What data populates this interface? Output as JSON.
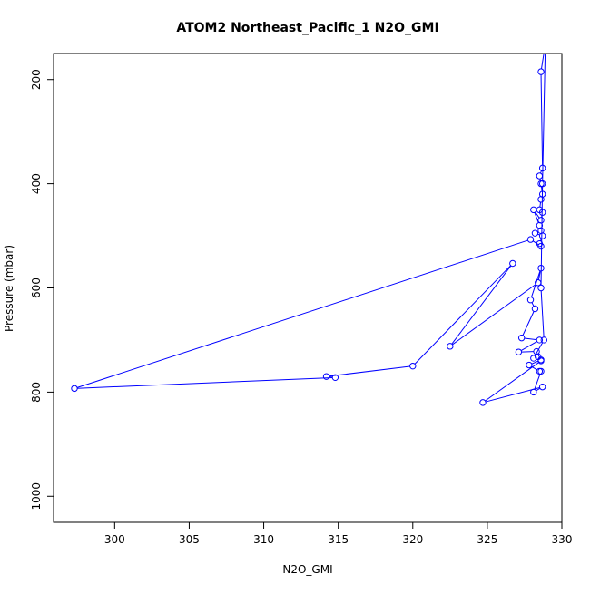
{
  "chart_data": {
    "type": "line",
    "title": "ATOM2 Northeast_Pacific_1 N2O_GMI",
    "xlabel": "N2O_GMI",
    "ylabel": "Pressure (mbar)",
    "xlim": [
      295.9,
      330
    ],
    "ylim": [
      1050,
      150
    ],
    "y_reversed": true,
    "x_ticks": [
      300,
      305,
      310,
      315,
      320,
      325,
      330
    ],
    "y_ticks": [
      200,
      400,
      600,
      800,
      1000
    ],
    "grid": false,
    "legend": "none",
    "markers": "open circles",
    "color": "#0000ff",
    "series": [
      {
        "x": [
          328.9,
          328.6,
          328.7,
          328.5,
          328.6,
          328.7,
          328.6,
          328.5,
          328.7,
          328.6,
          328.1,
          328.5,
          328.6,
          328.2,
          328.7,
          328.5,
          328.6,
          327.9,
          297.3,
          314.8,
          314.2,
          320.0,
          326.7,
          322.5,
          328.4,
          328.6,
          327.9,
          328.2,
          327.3,
          328.5,
          327.1,
          328.3,
          328.6,
          327.8,
          328.5,
          328.6,
          328.1,
          328.7,
          324.7,
          328.6,
          328.4,
          328.1,
          328.8,
          328.6,
          328.7,
          328.9
        ],
        "y": [
          130,
          185,
          370,
          385,
          400,
          420,
          430,
          450,
          455,
          470,
          450,
          480,
          490,
          495,
          500,
          515,
          520,
          507,
          793,
          772,
          770,
          750,
          553,
          712,
          590,
          562,
          623,
          640,
          696,
          700,
          723,
          722,
          738,
          748,
          760,
          760,
          800,
          790,
          820,
          740,
          732,
          735,
          700,
          600,
          400,
          120
        ]
      }
    ]
  }
}
